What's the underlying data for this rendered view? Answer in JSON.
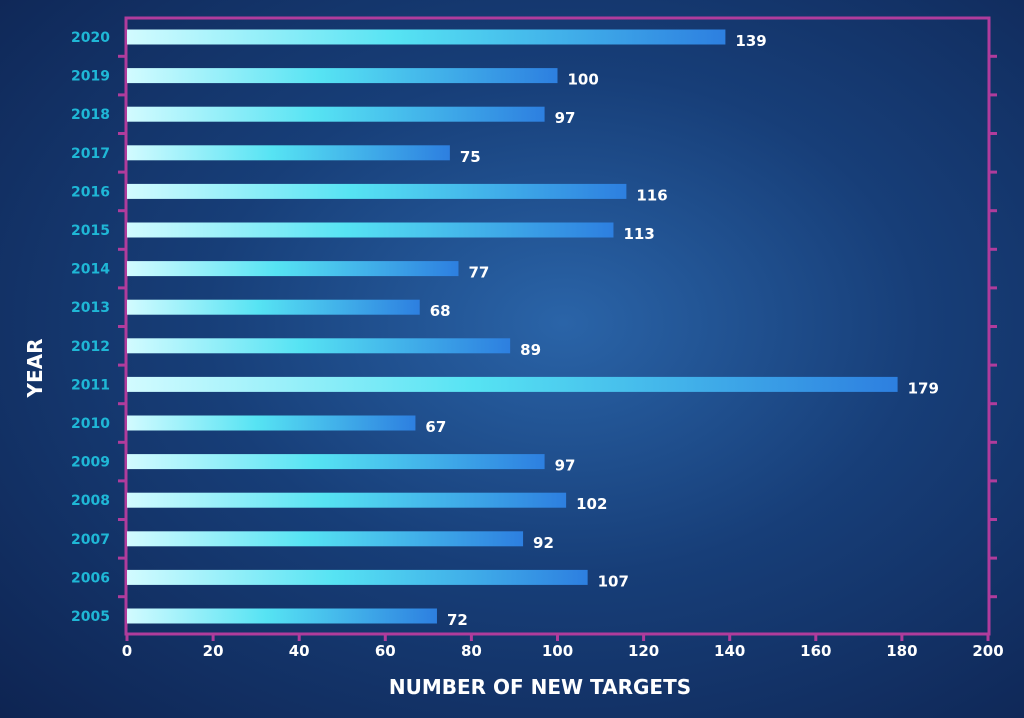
{
  "chart_data": {
    "type": "bar",
    "orientation": "horizontal",
    "categories": [
      "2020",
      "2019",
      "2018",
      "2017",
      "2016",
      "2015",
      "2014",
      "2013",
      "2012",
      "2011",
      "2010",
      "2009",
      "2008",
      "2007",
      "2006",
      "2005"
    ],
    "values": [
      139,
      100,
      97,
      75,
      116,
      113,
      77,
      68,
      89,
      179,
      67,
      97,
      102,
      92,
      107,
      72
    ],
    "xlabel": "NUMBER OF NEW TARGETS",
    "ylabel": "YEAR",
    "xlim": [
      0,
      200
    ],
    "xticks": [
      0,
      20,
      40,
      60,
      80,
      100,
      120,
      140,
      160,
      180,
      200
    ],
    "grid": false,
    "data_labels": true,
    "colors": {
      "bar_start": "#d2fbff",
      "bar_mid": "#56e3f3",
      "bar_end": "#2d7fe0",
      "frame": "#b03c9c",
      "ytick": "#1fb7d6",
      "text": "#ffffff"
    }
  }
}
